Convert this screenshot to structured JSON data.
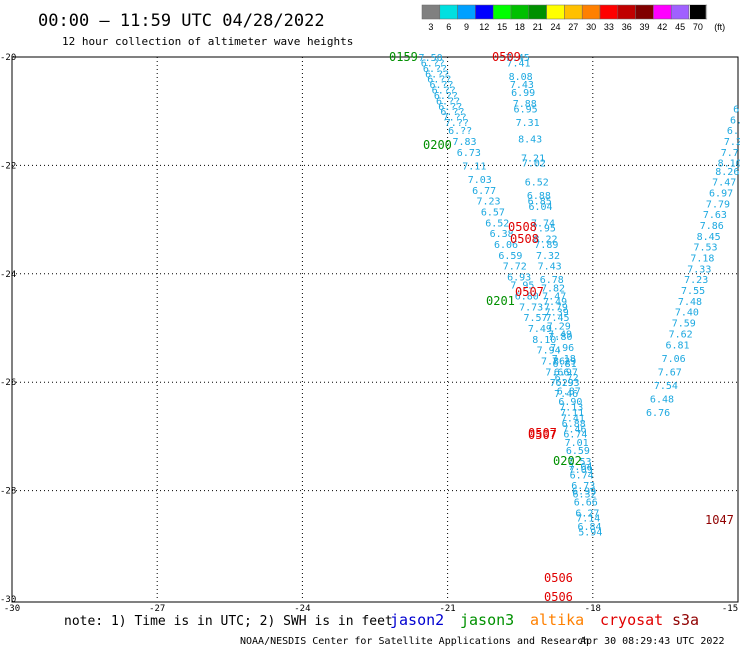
{
  "header": {
    "title": "00:00 — 11:59 UTC 04/28/2022",
    "subtitle": "12 hour collection of altimeter wave heights"
  },
  "legend": {
    "labels": [
      "3",
      "6",
      "9",
      "12",
      "15",
      "18",
      "21",
      "24",
      "27",
      "30",
      "33",
      "36",
      "39",
      "42",
      "45",
      "70",
      "(ft)"
    ],
    "colors": [
      "#808080",
      "#00e0e0",
      "#00a0ff",
      "#0000ff",
      "#00ff00",
      "#00c000",
      "#009000",
      "#ffff00",
      "#ffc000",
      "#ff8000",
      "#ff0000",
      "#c00000",
      "#800000",
      "#ff00ff",
      "#a060ff",
      "#ffffff",
      "#000000"
    ]
  },
  "axes": {
    "lat_labels": [
      "-20",
      "-22",
      "-24",
      "-26",
      "-28",
      "-30"
    ],
    "lon_labels": [
      "-30",
      "-27",
      "-24",
      "-21",
      "-18",
      "-15"
    ],
    "lat_range": [
      -30,
      -20
    ],
    "lon_range": [
      -30,
      -15
    ]
  },
  "tracks": [
    {
      "name": "jason3",
      "color": "#1ca8e0",
      "values": [
        "7.50",
        "6.??",
        "6.??",
        "6.??",
        "6.??",
        "6.??",
        "6.??",
        "6.??",
        "6.??",
        "6.??",
        "6.??",
        "7.??",
        "7.??",
        "6.??",
        "7.83",
        "6.73",
        "7.11",
        "7.03",
        "6.77",
        "7.23",
        "6.57",
        "6.52",
        "6.38",
        "6.06",
        "6.59",
        "7.72",
        "6.93",
        "7.95",
        "6.80",
        "7.73",
        "7.57",
        "7.49",
        "8.10",
        "7.94",
        "7.86",
        "7.66",
        "7.29",
        "7.46"
      ],
      "lats": [
        -20.0,
        -20.1,
        -20.2,
        -20.3,
        -20.4,
        -20.5,
        -20.6,
        -20.7,
        -20.8,
        -20.9,
        -21.0,
        -21.1,
        -21.2,
        -21.35,
        -21.55,
        -21.75,
        -22.0,
        -22.25,
        -22.45,
        -22.65,
        -22.85,
        -23.05,
        -23.25,
        -23.45,
        -23.65,
        -23.85,
        -24.05,
        -24.2,
        -24.4,
        -24.6,
        -24.8,
        -25.0,
        -25.2,
        -25.4,
        -25.6,
        -25.8,
        -26.0,
        -26.2
      ]
    },
    {
      "name": "jason3",
      "color": "#1ca8e0",
      "values": [
        "7.45",
        "7.41",
        "8.08",
        "7.43",
        "6.99",
        "7.88",
        "6.95",
        "7.31",
        "8.43",
        "7.21",
        "7.02",
        "6.52",
        "6.88",
        "6.85",
        "6.04",
        "7.74",
        "7.95",
        "8.22",
        "7.89",
        "7.32",
        "7.43",
        "6.78",
        "7.82",
        "7.47",
        "7.49",
        "7.79",
        "7.39",
        "7.45",
        "7.29",
        "7.49",
        "7.80",
        "7.96",
        "7.18",
        "7.29",
        "6.81",
        "6.97",
        "6.72",
        "6.93",
        "6.87",
        "6.90",
        "7.13",
        "7.11",
        "7.41",
        "6.88",
        "7.46",
        "6.74",
        "7.01",
        "6.59",
        "7.53",
        "7.04",
        "7.09",
        "6.74",
        "6.73",
        "6.99",
        "6.32",
        "6.66",
        "6.27",
        "7.14",
        "6.84",
        "5.94"
      ],
      "lats": [
        -20.0,
        -20.1,
        -20.35,
        -20.5,
        -20.65,
        -20.85,
        -20.95,
        -21.2,
        -21.5,
        -21.85,
        -21.95,
        -22.3,
        -22.55,
        -22.65,
        -22.75,
        -23.05,
        -23.15,
        -23.35,
        -23.45,
        -23.65,
        -23.85,
        -24.1,
        -24.25,
        -24.4,
        -24.5,
        -24.6,
        -24.7,
        -24.8,
        -24.95,
        -25.1,
        -25.15,
        -25.35,
        -25.55,
        -25.6,
        -25.65,
        -25.8,
        -25.9,
        -26.0,
        -26.15,
        -26.35,
        -26.45,
        -26.55,
        -26.65,
        -26.75,
        -26.85,
        -26.95,
        -27.1,
        -27.25,
        -27.45,
        -27.55,
        -27.6,
        -27.7,
        -27.9,
        -28.0,
        -28.05,
        -28.2,
        -28.4,
        -28.5,
        -28.65,
        -28.75
      ]
    },
    {
      "name": "jason3",
      "color": "#1ca8e0",
      "values": [
        "6.??",
        "6.??",
        "6.??",
        "7.2?",
        "7.7?",
        "8.10",
        "8.26",
        "7.47",
        "6.97",
        "7.79",
        "7.63",
        "7.86",
        "8.45",
        "7.53",
        "7.18",
        "7.33",
        "7.23",
        "7.55",
        "7.48",
        "7.40",
        "7.59",
        "7.62",
        "6.81",
        "7.06",
        "7.67",
        "7.54",
        "6.48",
        "6.76"
      ],
      "lats": [
        -20.95,
        -21.15,
        -21.35,
        -21.55,
        -21.75,
        -21.95,
        -22.1,
        -22.3,
        -22.5,
        -22.7,
        -22.9,
        -23.1,
        -23.3,
        -23.5,
        -23.7,
        -23.9,
        -24.1,
        -24.3,
        -24.5,
        -24.7,
        -24.9,
        -25.1,
        -25.3,
        -25.55,
        -25.8,
        -26.05,
        -26.3,
        -26.55
      ]
    }
  ],
  "time_labels": [
    {
      "text": "0159",
      "color": "#009000"
    },
    {
      "text": "0509",
      "color": "#e00000"
    },
    {
      "text": "0200",
      "color": "#009000"
    },
    {
      "text": "0508",
      "color": "#e00000"
    },
    {
      "text": "0508",
      "color": "#e00000"
    },
    {
      "text": "0507",
      "color": "#e00000"
    },
    {
      "text": "0201",
      "color": "#009000"
    },
    {
      "text": "0507",
      "color": "#e00000"
    },
    {
      "text": "0507",
      "color": "#e00000"
    },
    {
      "text": "0202",
      "color": "#009000"
    },
    {
      "text": "1047",
      "color": "#900000"
    },
    {
      "text": "0506",
      "color": "#e00000"
    },
    {
      "text": "0506",
      "color": "#e00000"
    }
  ],
  "note": "note: 1) Time is in UTC; 2) SWH is in feet",
  "satellites": [
    {
      "name": "jason2",
      "color": "#0000d0"
    },
    {
      "name": "jason3",
      "color": "#009000"
    },
    {
      "name": "altika",
      "color": "#ff8000"
    },
    {
      "name": "cryosat",
      "color": "#e00000"
    },
    {
      "name": "s3a",
      "color": "#900000"
    }
  ],
  "footer": {
    "org": "NOAA/NESDIS Center for Satellite Applications and Research",
    "generated": "Apr 30 08:29:43 UTC 2022"
  }
}
